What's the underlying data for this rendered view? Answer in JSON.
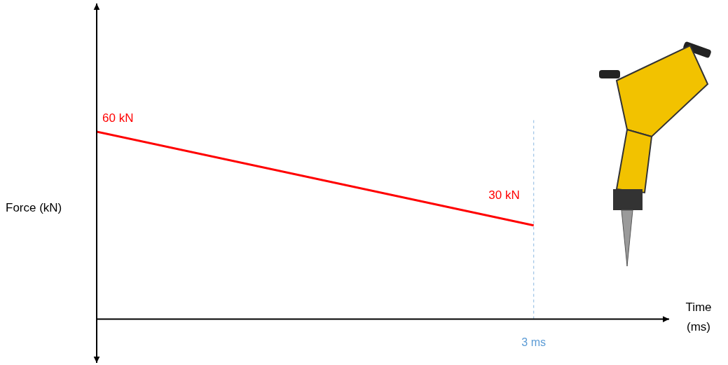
{
  "chart_data": {
    "type": "line",
    "xlabel": "Time (ms)",
    "ylabel": "Force (kN)",
    "x": [
      0,
      3
    ],
    "values": [
      60,
      30
    ],
    "color": "#ff0000",
    "data_labels": true,
    "value_labels": [
      "60 kN",
      "30 kN"
    ],
    "xlim": [
      0,
      3.93
    ],
    "ylim": [
      -14,
      101
    ],
    "tick_labels": false,
    "grid": false,
    "annotations": [
      {
        "text": "3 ms",
        "x": 3,
        "y": [
          0,
          64
        ],
        "color": "#5b9bd5",
        "line_style": "dashed"
      }
    ]
  }
}
